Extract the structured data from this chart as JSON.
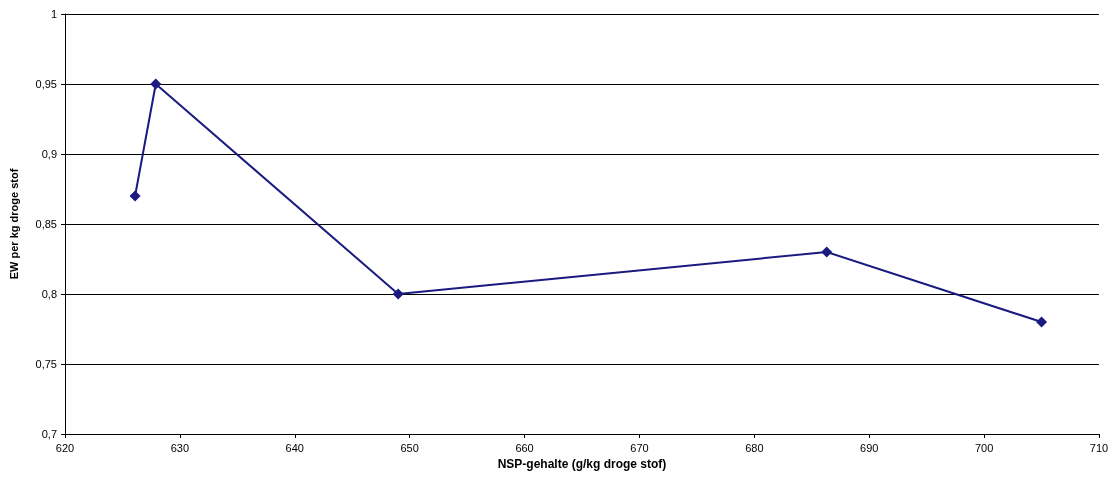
{
  "chart_data": {
    "type": "line",
    "xlabel": "NSP-gehalte (g/kg droge stof)",
    "ylabel": "EW per kg droge stof",
    "x": [
      626.1,
      627.9,
      649.0,
      686.3,
      705.0
    ],
    "series": [
      {
        "color": "#1a1a80",
        "values": [
          0.87,
          0.95,
          0.8,
          0.83,
          0.78
        ]
      }
    ],
    "xlim": [
      620,
      710
    ],
    "xticks": [
      620,
      630,
      640,
      650,
      660,
      670,
      680,
      690,
      700,
      710
    ],
    "ylim": [
      0.7,
      1
    ],
    "yticks": [
      {
        "value": 0.7,
        "label": "0,7"
      },
      {
        "value": 0.75,
        "label": "0,75"
      },
      {
        "value": 0.8,
        "label": "0,8"
      },
      {
        "value": 0.85,
        "label": "0,85"
      },
      {
        "value": 0.9,
        "label": "0,9"
      },
      {
        "value": 0.95,
        "label": "0,95"
      },
      {
        "value": 1,
        "label": "1"
      }
    ],
    "grid": "y",
    "marker": "diamond",
    "line_style": "solid"
  }
}
